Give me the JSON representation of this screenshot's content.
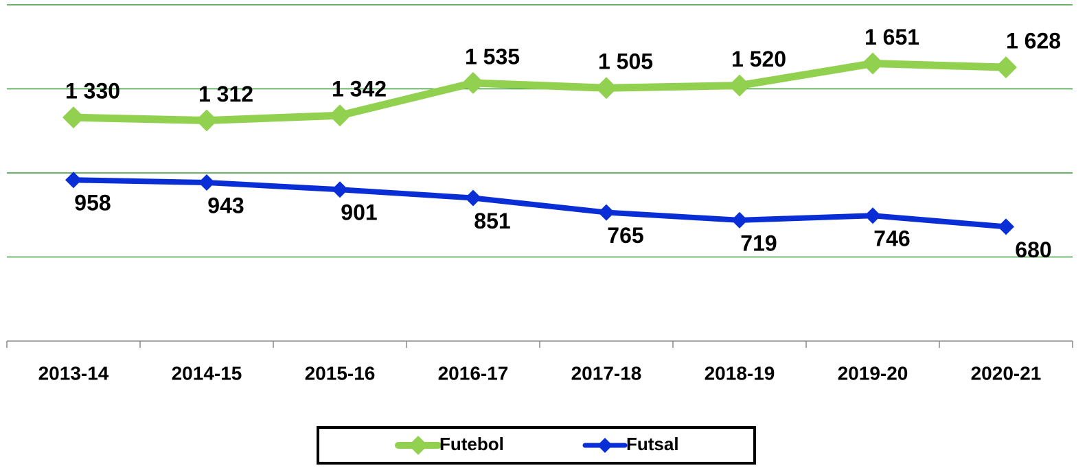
{
  "chart_data": {
    "type": "line",
    "categories": [
      "2013-14",
      "2014-15",
      "2015-16",
      "2016-17",
      "2017-18",
      "2018-19",
      "2019-20",
      "2020-21"
    ],
    "series": [
      {
        "name": "Futebol",
        "color": "#92d050",
        "values": [
          1330,
          1312,
          1342,
          1535,
          1505,
          1520,
          1651,
          1628
        ],
        "value_labels": [
          "1 330",
          "1 312",
          "1 342",
          "1 535",
          "1 505",
          "1 520",
          "1 651",
          "1 628"
        ]
      },
      {
        "name": "Futsal",
        "color": "#0a2ed6",
        "values": [
          958,
          943,
          901,
          851,
          765,
          719,
          746,
          680
        ]
      }
    ],
    "ylim": [
      0,
      2000
    ],
    "yticks": [
      0,
      500,
      1000,
      1500,
      2000
    ],
    "grid": true,
    "grid_color": "#3a9a3a",
    "legend": "bottom"
  }
}
